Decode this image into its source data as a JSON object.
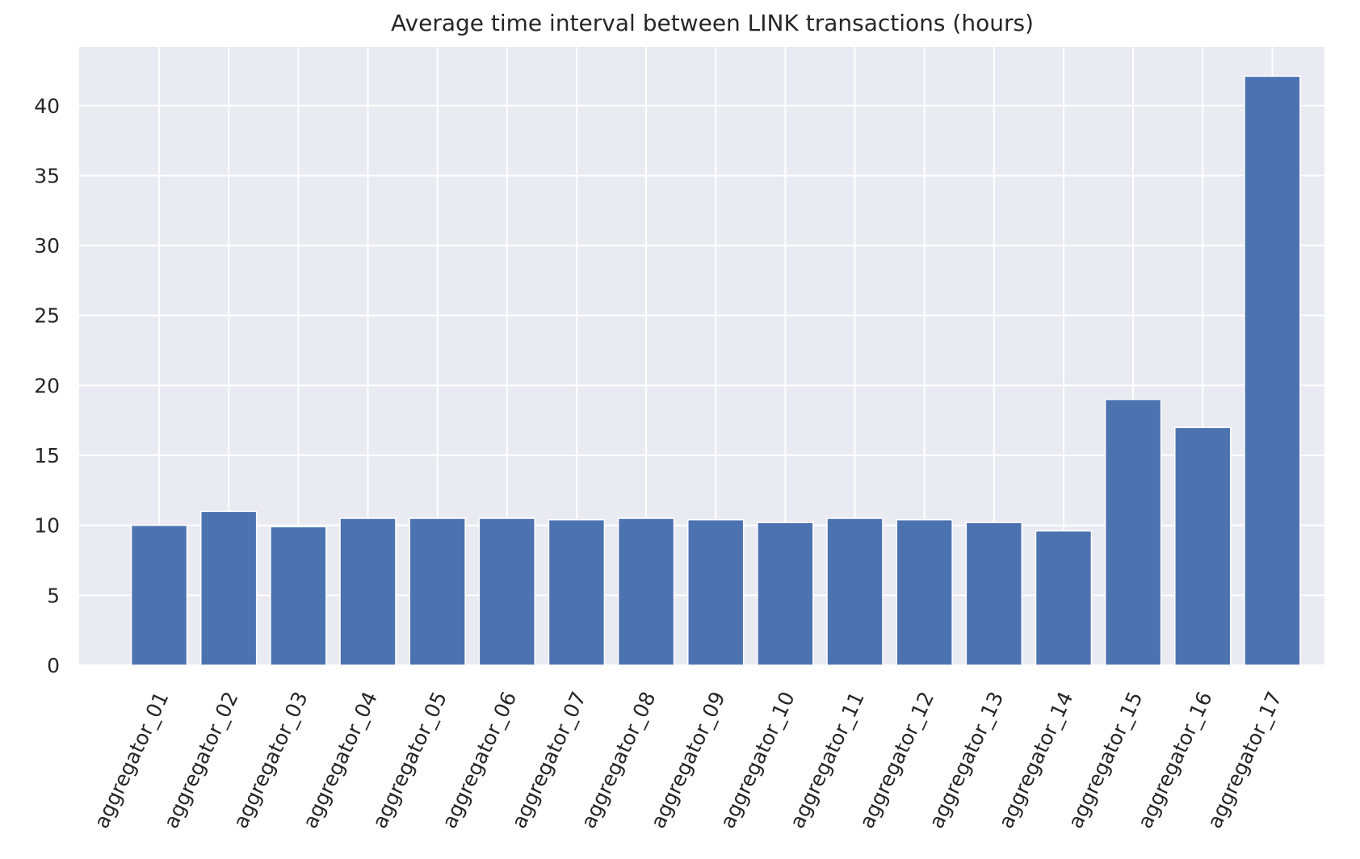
{
  "chart_data": {
    "type": "bar",
    "title": "Average time interval between LINK transactions (hours)",
    "xlabel": "",
    "ylabel": "",
    "categories": [
      "aggregator_01",
      "aggregator_02",
      "aggregator_03",
      "aggregator_04",
      "aggregator_05",
      "aggregator_06",
      "aggregator_07",
      "aggregator_08",
      "aggregator_09",
      "aggregator_10",
      "aggregator_11",
      "aggregator_12",
      "aggregator_13",
      "aggregator_14",
      "aggregator_15",
      "aggregator_16",
      "aggregator_17"
    ],
    "values": [
      10.0,
      11.0,
      9.9,
      10.5,
      10.5,
      10.5,
      10.4,
      10.5,
      10.4,
      10.2,
      10.5,
      10.4,
      10.2,
      9.6,
      19.0,
      17.0,
      42.1
    ],
    "ylim": [
      0,
      44.2
    ],
    "yticks": [
      0,
      5,
      10,
      15,
      20,
      25,
      30,
      35,
      40
    ],
    "grid": true,
    "legend": "none",
    "colors": {
      "bar": "#4c72b0",
      "axes_background": "#eaeaf2",
      "grid": "#ffffff",
      "text": "#262626"
    }
  }
}
